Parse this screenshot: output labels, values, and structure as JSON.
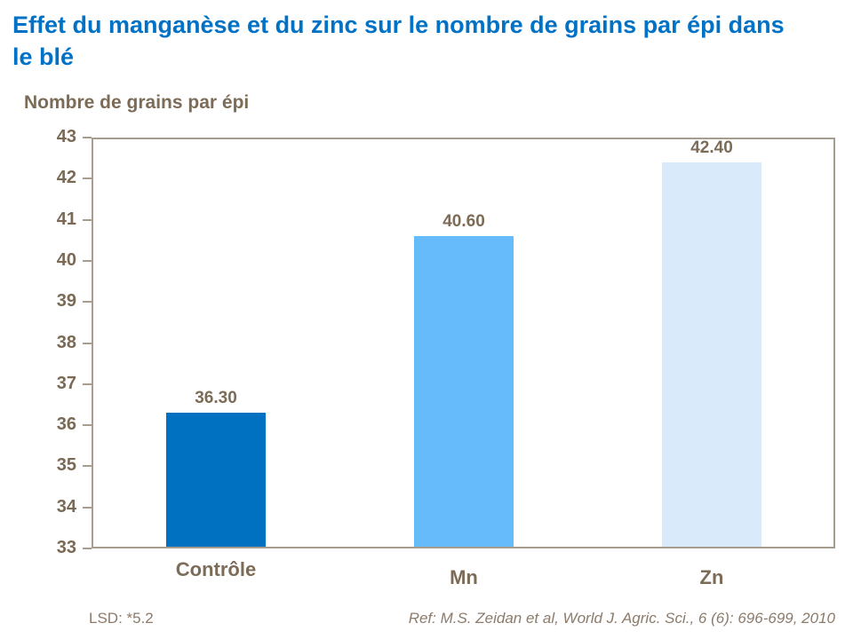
{
  "title": "Effet du manganèse et du zinc sur le nombre de grains par épi dans le blé",
  "axis_title": "Nombre de grains par épi",
  "chart_data": {
    "type": "bar",
    "title": "Effet du manganèse et du zinc sur le nombre de grains par épi dans le blé",
    "categories": [
      "Contrôle",
      "Mn",
      "Zn"
    ],
    "values": [
      36.3,
      40.6,
      42.4
    ],
    "value_labels": [
      "36.30",
      "40.60",
      "42.40"
    ],
    "bar_colors": [
      "#0070C0",
      "#66BBFA",
      "#D9EAFB"
    ],
    "xlabel": "",
    "ylabel": "Nombre de grains par épi",
    "ylim": [
      33,
      43
    ],
    "yticks": [
      33,
      34,
      35,
      36,
      37,
      38,
      39,
      40,
      41,
      42,
      43
    ],
    "ytick_step": 1,
    "grid": "horizontal",
    "legend_position": "none"
  },
  "footer": {
    "lsd": "LSD: *5.2",
    "ref": "Ref: M.S. Zeidan et al, World J. Agric. Sci., 6 (6): 696-699, 2010"
  },
  "colors": {
    "title": "#0072C6",
    "text": "#7C6C57",
    "tick_text": "#7A6A55",
    "footer_text": "#8C7B6B",
    "frame": "#A79D8F",
    "gridline": "#B6AB9B",
    "bar_control": "#0070C0",
    "bar_mn": "#66BBFA",
    "bar_zn": "#D9EAFB"
  }
}
